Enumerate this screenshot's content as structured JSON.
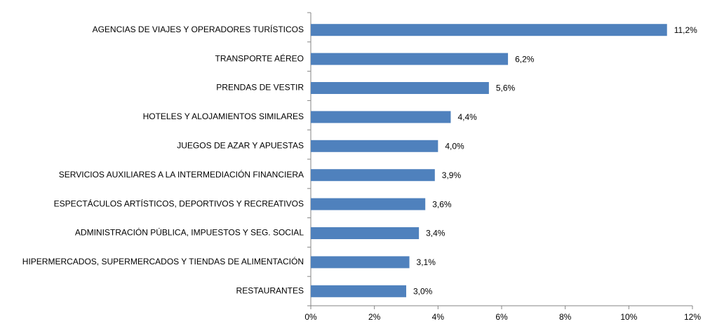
{
  "chart_data": {
    "type": "bar",
    "orientation": "horizontal",
    "categories": [
      "AGENCIAS DE VIAJES Y OPERADORES TURÍSTICOS",
      "TRANSPORTE AÉREO",
      "PRENDAS DE VESTIR",
      "HOTELES  Y ALOJAMIENTOS SIMILARES",
      "JUEGOS DE AZAR Y APUESTAS",
      "SERVICIOS AUXILIARES A LA INTERMEDIACIÓN FINANCIERA",
      "ESPECTÁCULOS ARTÍSTICOS, DEPORTIVOS Y RECREATIVOS",
      "ADMINISTRACIÓN PÚBLICA, IMPUESTOS Y SEG. SOCIAL",
      "HIPERMERCADOS, SUPERMERCADOS Y TIENDAS DE ALIMENTACIÓN",
      "RESTAURANTES"
    ],
    "values": [
      11.2,
      6.2,
      5.6,
      4.4,
      4.0,
      3.9,
      3.6,
      3.4,
      3.1,
      3.0
    ],
    "value_labels": [
      "11,2%",
      "6,2%",
      "5,6%",
      "4,4%",
      "4,0%",
      "3,9%",
      "3,6%",
      "3,4%",
      "3,1%",
      "3,0%"
    ],
    "color": "#4f81bd",
    "xlim": [
      0,
      12
    ],
    "xticks": [
      {
        "value": 0,
        "label": "0%"
      },
      {
        "value": 2,
        "label": "2%"
      },
      {
        "value": 4,
        "label": "4%"
      },
      {
        "value": 6,
        "label": "6%"
      },
      {
        "value": 8,
        "label": "8%"
      },
      {
        "value": 10,
        "label": "10%"
      },
      {
        "value": 12,
        "label": "12%"
      }
    ],
    "grid": false
  }
}
